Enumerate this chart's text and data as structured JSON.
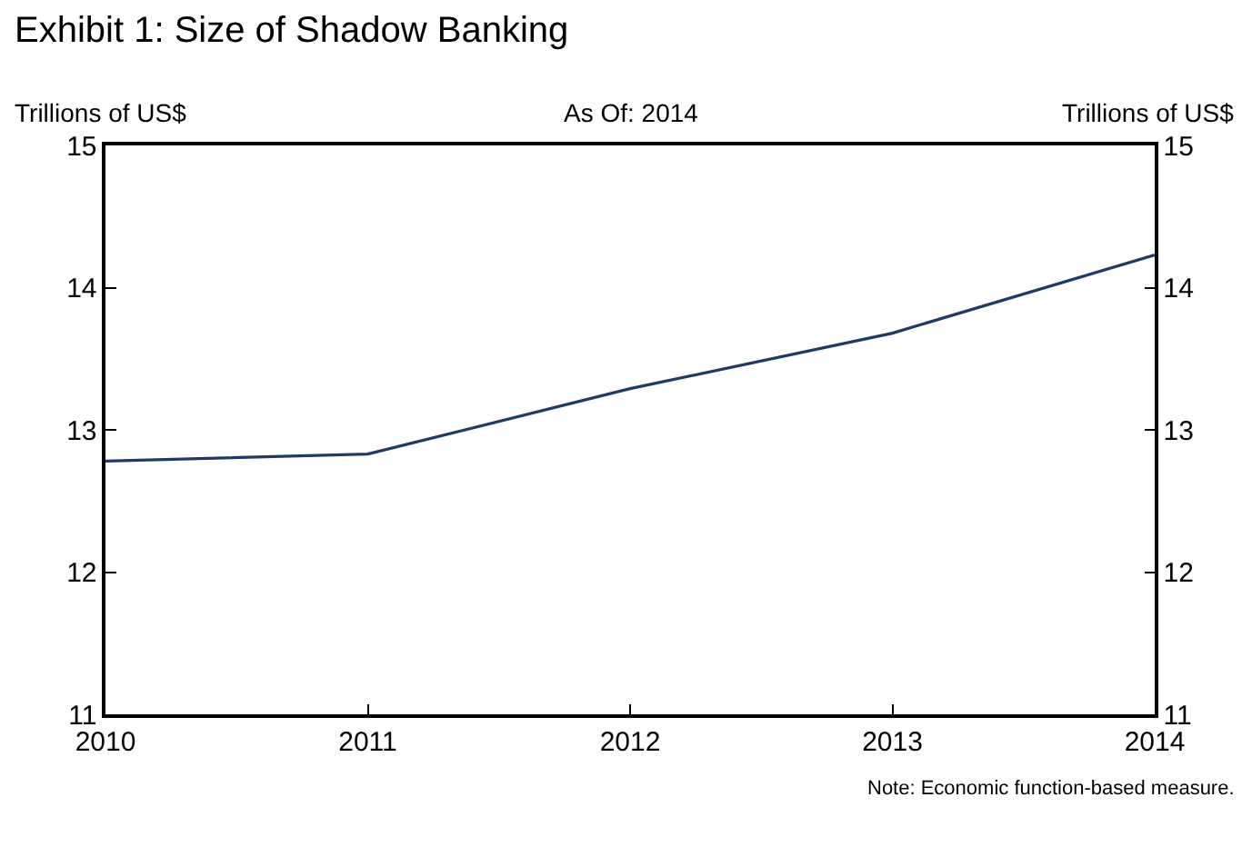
{
  "chart_data": {
    "type": "line",
    "title": "Exhibit 1: Size of Shadow Banking",
    "subtitle": "As Of: 2014",
    "ylabel": "Trillions of US$",
    "y2label": "Trillions of US$",
    "x": [
      2010,
      2011,
      2012,
      2013,
      2014
    ],
    "series": [
      {
        "color": "#1f3a64",
        "values": [
          12.78,
          12.83,
          13.29,
          13.68,
          14.23
        ]
      }
    ],
    "xlim": [
      2010,
      2014
    ],
    "xticks": [
      2010,
      2011,
      2012,
      2013,
      2014
    ],
    "ylim": [
      11,
      15
    ],
    "yticks": [
      11,
      12,
      13,
      14,
      15
    ],
    "y2lim": [
      11,
      15
    ],
    "y2ticks": [
      11,
      12,
      13,
      14,
      15
    ],
    "marker": "none",
    "line_style": "solid",
    "annotations": [
      "Note: Economic function-based measure."
    ]
  }
}
